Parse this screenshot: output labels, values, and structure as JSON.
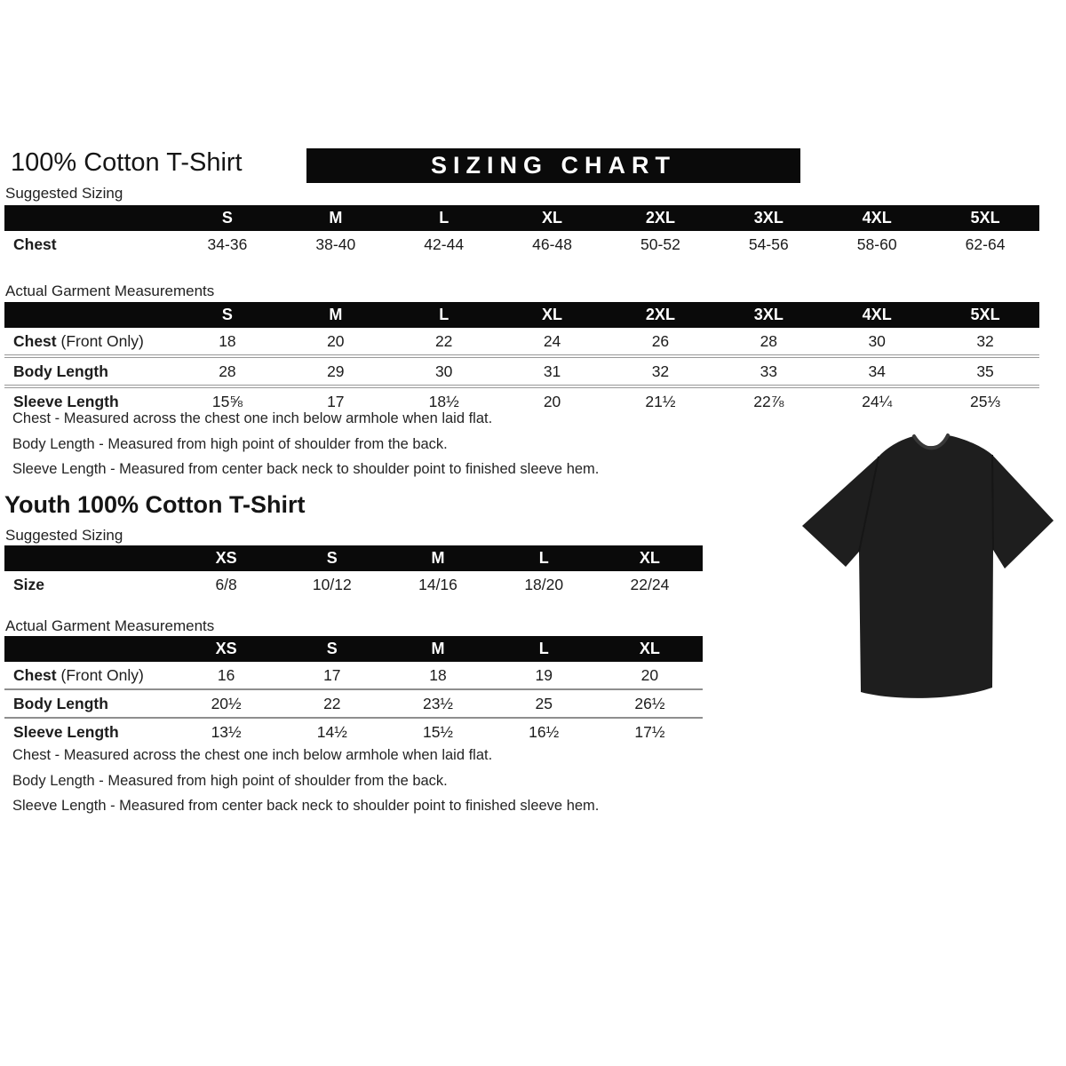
{
  "page": {
    "banner": "SIZING CHART"
  },
  "adult": {
    "title": "100% Cotton T-Shirt",
    "suggested": {
      "label": "Suggested Sizing",
      "columns": [
        "S",
        "M",
        "L",
        "XL",
        "2XL",
        "3XL",
        "4XL",
        "5XL"
      ],
      "rows": [
        {
          "label_bold": "Chest",
          "values": [
            "34-36",
            "38-40",
            "42-44",
            "46-48",
            "50-52",
            "54-56",
            "58-60",
            "62-64"
          ]
        }
      ]
    },
    "measurements": {
      "label": "Actual Garment Measurements",
      "columns": [
        "S",
        "M",
        "L",
        "XL",
        "2XL",
        "3XL",
        "4XL",
        "5XL"
      ],
      "rows": [
        {
          "label_bold": "Chest",
          "label_rest": " (Front Only)",
          "values": [
            "18",
            "20",
            "22",
            "24",
            "26",
            "28",
            "30",
            "32"
          ]
        },
        {
          "label_bold": "Body Length",
          "values": [
            "28",
            "29",
            "30",
            "31",
            "32",
            "33",
            "34",
            "35"
          ]
        },
        {
          "label_bold": "Sleeve Length",
          "values": [
            "15⅝",
            "17",
            "18½",
            "20",
            "21½",
            "22⅞",
            "24¼",
            "25⅓"
          ]
        }
      ]
    },
    "notes": [
      "Chest - Measured across the chest one inch below armhole when laid flat.",
      "Body Length - Measured from high point of shoulder from the back.",
      "Sleeve Length - Measured from center back neck to shoulder point to finished sleeve hem."
    ]
  },
  "youth": {
    "title": "Youth 100% Cotton T-Shirt",
    "suggested": {
      "label": "Suggested Sizing",
      "columns": [
        "XS",
        "S",
        "M",
        "L",
        "XL"
      ],
      "rows": [
        {
          "label_bold": "Size",
          "values": [
            "6/8",
            "10/12",
            "14/16",
            "18/20",
            "22/24"
          ]
        }
      ]
    },
    "measurements": {
      "label": "Actual Garment Measurements",
      "columns": [
        "XS",
        "S",
        "M",
        "L",
        "XL"
      ],
      "rows": [
        {
          "label_bold": "Chest",
          "label_rest": " (Front Only)",
          "values": [
            "16",
            "17",
            "18",
            "19",
            "20"
          ]
        },
        {
          "label_bold": "Body Length",
          "values": [
            "20½",
            "22",
            "23½",
            "25",
            "26½"
          ]
        },
        {
          "label_bold": "Sleeve Length",
          "values": [
            "13½",
            "14½",
            "15½",
            "16½",
            "17½"
          ]
        }
      ]
    },
    "notes": [
      "Chest - Measured across the chest one inch below armhole when laid flat.",
      "Body Length - Measured from high point of shoulder from the back.",
      "Sleeve Length - Measured from center back neck to shoulder point to finished sleeve hem."
    ]
  },
  "tshirt": {
    "color": "#1e1e1e",
    "collar_color": "#383838"
  }
}
